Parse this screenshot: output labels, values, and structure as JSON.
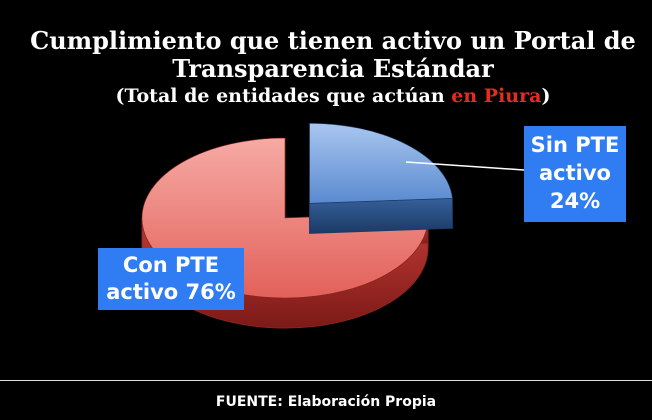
{
  "chart_data": {
    "type": "pie",
    "title_line1": "Cumplimiento que tienen activo un Portal de",
    "title_line2": "Transparencia Estándar",
    "subtitle_prefix": "(Total de entidades que actúan ",
    "subtitle_highlight": "en Piura",
    "subtitle_suffix": ")",
    "slices": [
      {
        "label_line1": "Sin PTE",
        "label_line2": "activo",
        "percent_label": "24%",
        "value": 24,
        "color": "#5b8fd6",
        "exploded": true
      },
      {
        "label_line1": "Con PTE",
        "label_line2": "activo 76%",
        "value": 76,
        "color": "#e85c57",
        "exploded": false
      }
    ],
    "highlight_color": "#e62b1f",
    "label_box_color": "#2f7cf3"
  },
  "footer": {
    "text": "FUENTE: Elaboración Propia"
  }
}
